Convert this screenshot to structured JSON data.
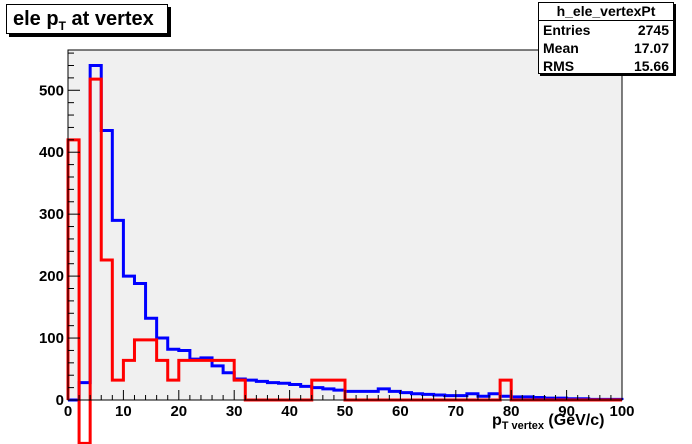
{
  "title": {
    "main": "ele p",
    "sub": "T",
    "rest": " at vertex"
  },
  "stats": {
    "name": "h_ele_vertexPt",
    "rows": [
      {
        "label": "Entries",
        "value": "2745"
      },
      {
        "label": "Mean",
        "value": "17.07"
      },
      {
        "label": "RMS",
        "value": "15.66"
      }
    ]
  },
  "xlabel": {
    "main": "p",
    "sub": "T vertex",
    "rest": " (GeV/c)"
  },
  "chart_data": {
    "type": "line",
    "xlim": [
      0,
      100
    ],
    "ylim": [
      0,
      565
    ],
    "xticks": [
      0,
      10,
      20,
      30,
      40,
      50,
      60,
      70,
      80,
      90,
      100
    ],
    "yticks": [
      0,
      100,
      200,
      300,
      400,
      500
    ],
    "grid": false,
    "frame_color": "#f0f0f0",
    "bin_edges": [
      0,
      2,
      4,
      6,
      8,
      10,
      12,
      14,
      16,
      18,
      20,
      22,
      24,
      26,
      28,
      30,
      32,
      34,
      36,
      38,
      40,
      42,
      44,
      46,
      48,
      50,
      52,
      54,
      56,
      58,
      60,
      62,
      64,
      66,
      68,
      70,
      72,
      74,
      76,
      78,
      80,
      82,
      84,
      86,
      88,
      90,
      92,
      94,
      96,
      98,
      100
    ],
    "series": [
      {
        "color": "#0000ff",
        "values": [
          0,
          28,
          540,
          435,
          290,
          200,
          188,
          132,
          100,
          82,
          80,
          66,
          68,
          55,
          44,
          34,
          32,
          30,
          28,
          27,
          25,
          22,
          20,
          18,
          16,
          14,
          14,
          14,
          18,
          14,
          12,
          10,
          9,
          8,
          7,
          7,
          10,
          6,
          10,
          6,
          5,
          5,
          4,
          3,
          3,
          2,
          2,
          1,
          1,
          1
        ]
      },
      {
        "color": "#ff0000",
        "values": [
          420,
          -70,
          518,
          226,
          32,
          64,
          97,
          97,
          64,
          32,
          64,
          64,
          64,
          64,
          64,
          32,
          0,
          0,
          0,
          0,
          0,
          0,
          32,
          32,
          32,
          0,
          0,
          0,
          0,
          0,
          0,
          0,
          0,
          0,
          0,
          0,
          0,
          0,
          0,
          32,
          0,
          0,
          0,
          0,
          0,
          0,
          0,
          0,
          0,
          0
        ]
      }
    ]
  }
}
